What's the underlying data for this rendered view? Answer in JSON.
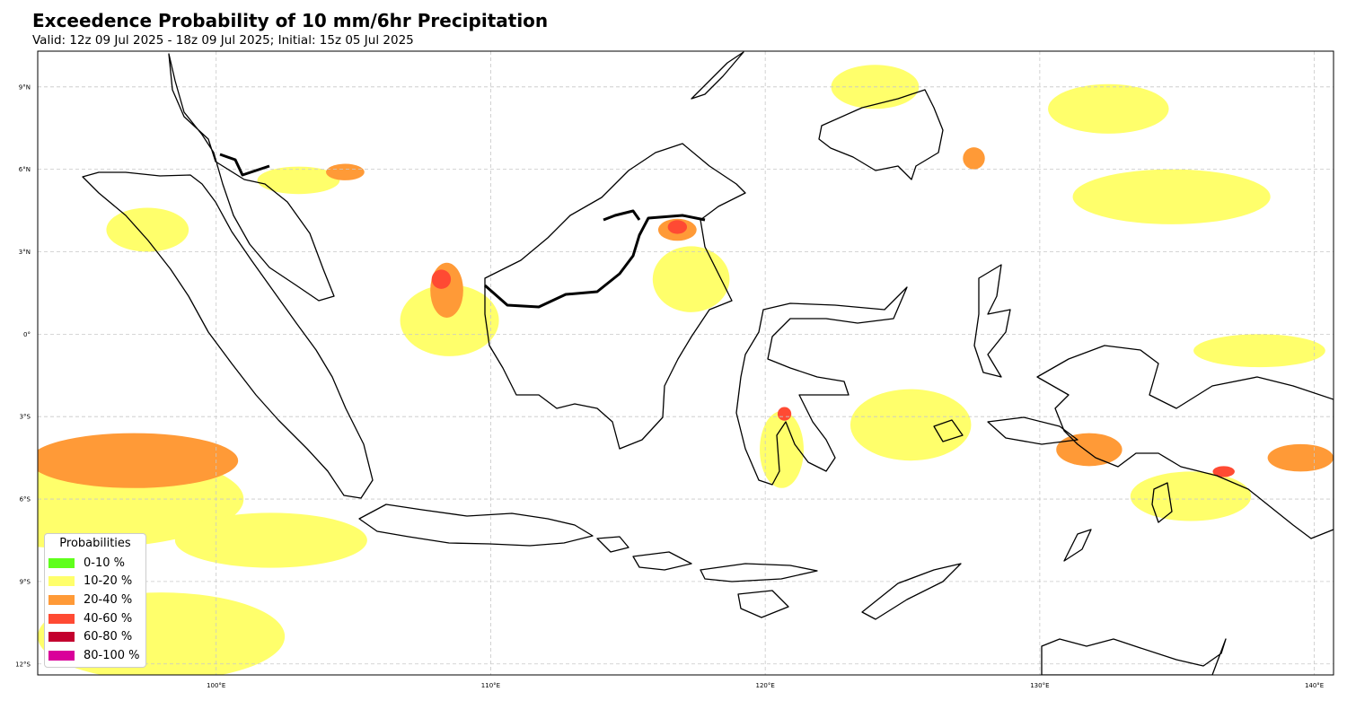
{
  "header": {
    "title": "Exceedence Probability of 10 mm/6hr Precipitation",
    "subtitle": "Valid: 12z 09 Jul 2025 - 18z 09 Jul 2025; Initial: 15z 05 Jul 2025"
  },
  "map": {
    "lon_range": [
      93.5,
      140.7
    ],
    "lat_range": [
      -12.4,
      10.3
    ],
    "lon_ticks": [
      {
        "value": 100,
        "label": "100°E"
      },
      {
        "value": 110,
        "label": "110°E"
      },
      {
        "value": 120,
        "label": "120°E"
      },
      {
        "value": 130,
        "label": "130°E"
      },
      {
        "value": 140,
        "label": "140°E"
      }
    ],
    "lat_ticks": [
      {
        "value": 9,
        "label": "9°N"
      },
      {
        "value": 6,
        "label": "6°N"
      },
      {
        "value": 3,
        "label": "3°N"
      },
      {
        "value": 0,
        "label": "0°"
      },
      {
        "value": -3,
        "label": "3°S"
      },
      {
        "value": -6,
        "label": "6°S"
      },
      {
        "value": -9,
        "label": "9°S"
      },
      {
        "value": -12,
        "label": "12°S"
      }
    ],
    "gridlines": true,
    "coastline_color": "#000000",
    "probability_regions": [
      {
        "category": "10-20 %",
        "lon": 95.0,
        "lat": -6.0,
        "rlon": 6.0,
        "rlat": 1.8
      },
      {
        "category": "10-20 %",
        "lon": 98.0,
        "lat": -11.0,
        "rlon": 4.5,
        "rlat": 1.6
      },
      {
        "category": "10-20 %",
        "lon": 102.0,
        "lat": -7.5,
        "rlon": 3.5,
        "rlat": 1.0
      },
      {
        "category": "10-20 %",
        "lon": 97.5,
        "lat": 3.8,
        "rlon": 1.5,
        "rlat": 0.8
      },
      {
        "category": "10-20 %",
        "lon": 103.0,
        "lat": 5.6,
        "rlon": 1.5,
        "rlat": 0.5
      },
      {
        "category": "10-20 %",
        "lon": 108.5,
        "lat": 0.5,
        "rlon": 1.8,
        "rlat": 1.3
      },
      {
        "category": "10-20 %",
        "lon": 117.3,
        "lat": 2.0,
        "rlon": 1.4,
        "rlat": 1.2
      },
      {
        "category": "10-20 %",
        "lon": 125.3,
        "lat": -3.3,
        "rlon": 2.2,
        "rlat": 1.3
      },
      {
        "category": "10-20 %",
        "lon": 134.8,
        "lat": 5.0,
        "rlon": 3.6,
        "rlat": 1.0
      },
      {
        "category": "10-20 %",
        "lon": 138.0,
        "lat": -0.6,
        "rlon": 2.4,
        "rlat": 0.6
      },
      {
        "category": "10-20 %",
        "lon": 135.5,
        "lat": -5.9,
        "rlon": 2.2,
        "rlat": 0.9
      },
      {
        "category": "10-20 %",
        "lon": 132.5,
        "lat": 8.2,
        "rlon": 2.2,
        "rlat": 0.9
      },
      {
        "category": "10-20 %",
        "lon": 124.0,
        "lat": 9.0,
        "rlon": 1.6,
        "rlat": 0.8
      },
      {
        "category": "10-20 %",
        "lon": 120.6,
        "lat": -4.2,
        "rlon": 0.8,
        "rlat": 1.4
      },
      {
        "category": "20-40 %",
        "lon": 97.0,
        "lat": -4.6,
        "rlon": 3.8,
        "rlat": 1.0
      },
      {
        "category": "20-40 %",
        "lon": 108.4,
        "lat": 1.6,
        "rlon": 0.6,
        "rlat": 1.0
      },
      {
        "category": "20-40 %",
        "lon": 104.7,
        "lat": 5.9,
        "rlon": 0.7,
        "rlat": 0.3
      },
      {
        "category": "20-40 %",
        "lon": 131.8,
        "lat": -4.2,
        "rlon": 1.2,
        "rlat": 0.6
      },
      {
        "category": "20-40 %",
        "lon": 139.5,
        "lat": -4.5,
        "rlon": 1.2,
        "rlat": 0.5
      },
      {
        "category": "20-40 %",
        "lon": 127.6,
        "lat": 6.4,
        "rlon": 0.4,
        "rlat": 0.4
      },
      {
        "category": "20-40 %",
        "lon": 116.8,
        "lat": 3.8,
        "rlon": 0.7,
        "rlat": 0.4
      },
      {
        "category": "40-60 %",
        "lon": 108.2,
        "lat": 2.0,
        "rlon": 0.35,
        "rlat": 0.35
      },
      {
        "category": "40-60 %",
        "lon": 116.8,
        "lat": 3.9,
        "rlon": 0.35,
        "rlat": 0.25
      },
      {
        "category": "40-60 %",
        "lon": 136.7,
        "lat": -5.0,
        "rlon": 0.4,
        "rlat": 0.2
      },
      {
        "category": "40-60 %",
        "lon": 120.7,
        "lat": -2.9,
        "rlon": 0.25,
        "rlat": 0.25
      }
    ]
  },
  "legend": {
    "title": "Probabilities",
    "items": [
      {
        "label": "0-10 %",
        "color": "#5fff1b"
      },
      {
        "label": "10-20 %",
        "color": "#ffff6b"
      },
      {
        "label": "20-40 %",
        "color": "#ff9a37"
      },
      {
        "label": "40-60 %",
        "color": "#ff4a33"
      },
      {
        "label": "60-80 %",
        "color": "#c3002e"
      },
      {
        "label": "80-100 %",
        "color": "#d9009a"
      }
    ]
  }
}
